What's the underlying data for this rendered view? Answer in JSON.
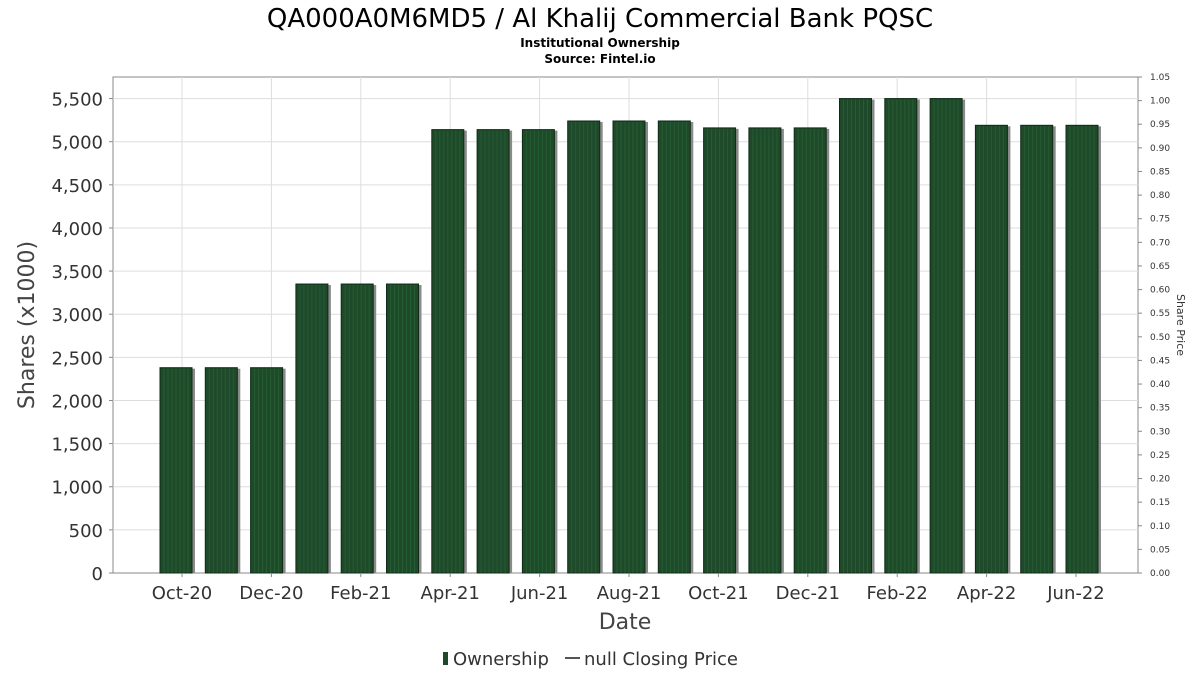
{
  "chart_data": {
    "type": "bar",
    "title": "QA000A0M6MD5 / Al Khalij Commercial Bank PQSC",
    "subtitle": "Institutional Ownership",
    "source": "Source: Fintel.io",
    "xlabel": "Date",
    "ylabel": "Shares (x1000)",
    "y2label": "Share Price",
    "ylim": [
      0,
      5750
    ],
    "y2lim": [
      0,
      1.05
    ],
    "y_ticks": [
      0,
      500,
      1000,
      1500,
      2000,
      2500,
      3000,
      3500,
      4000,
      4500,
      5000,
      5500
    ],
    "y_tick_labels": [
      "0",
      "500",
      "1,000",
      "1,500",
      "2,000",
      "2,500",
      "3,000",
      "3,500",
      "4,000",
      "4,500",
      "5,000",
      "5,500"
    ],
    "y2_ticks": [
      0.0,
      0.05,
      0.1,
      0.15,
      0.2,
      0.25,
      0.3,
      0.35,
      0.4,
      0.45,
      0.5,
      0.55,
      0.6,
      0.65,
      0.7,
      0.75,
      0.8,
      0.85,
      0.9,
      0.95,
      1.0,
      1.05
    ],
    "y2_tick_labels": [
      "0.00",
      "0.05",
      "0.10",
      "0.15",
      "0.20",
      "0.25",
      "0.30",
      "0.35",
      "0.40",
      "0.45",
      "0.50",
      "0.55",
      "0.60",
      "0.65",
      "0.70",
      "0.75",
      "0.80",
      "0.85",
      "0.90",
      "0.95",
      "1.00",
      "1.05"
    ],
    "x_tick_labels": [
      "Oct-20",
      "Dec-20",
      "Feb-21",
      "Apr-21",
      "Jun-21",
      "Aug-21",
      "Oct-21",
      "Dec-21",
      "Feb-22",
      "Apr-22",
      "Jun-22"
    ],
    "grid": true,
    "legend_position": "bottom",
    "series": [
      {
        "name": "Ownership",
        "color": "#1e4a2a",
        "values": [
          2380,
          2380,
          2380,
          3350,
          3350,
          3350,
          5140,
          5140,
          5140,
          5240,
          5240,
          5240,
          5160,
          5160,
          5160,
          5500,
          5500,
          5500,
          5190,
          5190,
          5190
        ]
      },
      {
        "name": "null Closing Price",
        "color": "#555555",
        "values": []
      }
    ]
  }
}
